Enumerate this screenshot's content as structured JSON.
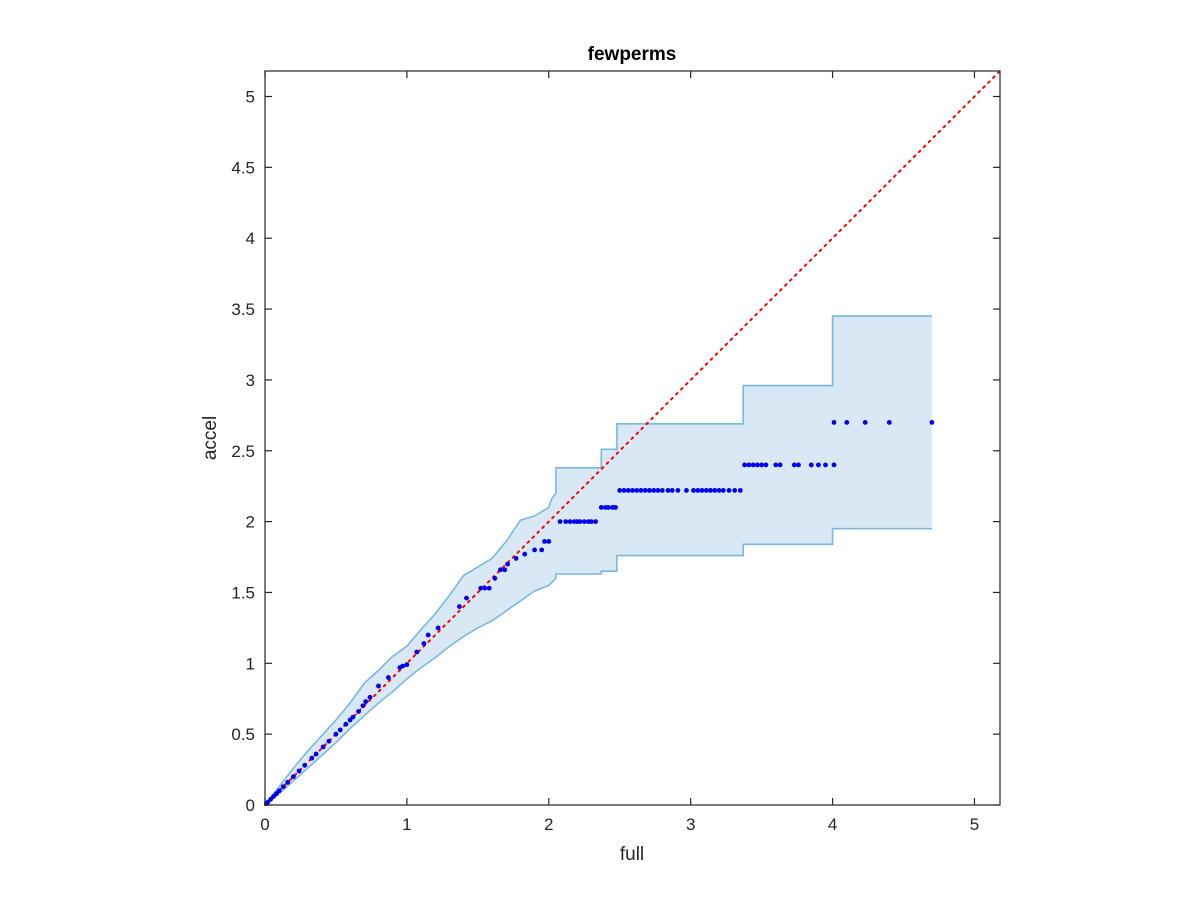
{
  "chart_data": {
    "type": "scatter",
    "title": "fewperms",
    "xlabel": "full",
    "ylabel": "accel",
    "xlim": [
      0,
      5.18
    ],
    "ylim": [
      0,
      5.18
    ],
    "x_ticks": [
      0,
      1,
      2,
      3,
      4,
      5
    ],
    "x_tick_labels": [
      "0",
      "1",
      "2",
      "3",
      "4",
      "5"
    ],
    "y_ticks": [
      0,
      0.5,
      1,
      1.5,
      2,
      2.5,
      3,
      3.5,
      4,
      4.5,
      5
    ],
    "y_tick_labels": [
      "0",
      "0.5",
      "1",
      "1.5",
      "2",
      "2.5",
      "3",
      "3.5",
      "4",
      "4.5",
      "5"
    ],
    "grid": false,
    "legend": "none",
    "colors": {
      "points": "#0000ee",
      "reference_line": "#ff0000",
      "band_fill": "#d8e8f5",
      "band_edge": "#7ab8de",
      "axes": "#262626"
    },
    "reference_line": {
      "style": "dotted",
      "x": [
        0,
        5.18
      ],
      "y": [
        0,
        5.18
      ]
    },
    "band_upper": {
      "x": [
        0,
        0.1,
        0.2,
        0.3,
        0.4,
        0.5,
        0.6,
        0.7,
        0.8,
        0.9,
        1.0,
        1.1,
        1.2,
        1.3,
        1.4,
        1.5,
        1.6,
        1.7,
        1.8,
        1.9,
        2.0,
        2.02,
        2.05,
        2.05,
        2.37,
        2.37,
        2.48,
        2.48,
        3.37,
        3.37,
        4.0,
        4.0,
        4.7
      ],
      "y": [
        0,
        0.13,
        0.26,
        0.38,
        0.49,
        0.6,
        0.72,
        0.86,
        0.95,
        1.05,
        1.12,
        1.24,
        1.35,
        1.48,
        1.62,
        1.68,
        1.74,
        1.86,
        2.01,
        2.04,
        2.1,
        2.16,
        2.2,
        2.38,
        2.38,
        2.51,
        2.51,
        2.69,
        2.69,
        2.96,
        2.96,
        3.45,
        3.45
      ]
    },
    "band_lower": {
      "x": [
        0,
        0.1,
        0.2,
        0.3,
        0.4,
        0.5,
        0.6,
        0.7,
        0.8,
        0.9,
        1.0,
        1.1,
        1.2,
        1.3,
        1.4,
        1.5,
        1.6,
        1.7,
        1.8,
        1.9,
        2.0,
        2.05,
        2.05,
        2.37,
        2.37,
        2.48,
        2.48,
        3.37,
        3.37,
        4.0,
        4.0,
        4.7
      ],
      "y": [
        0,
        0.08,
        0.17,
        0.26,
        0.35,
        0.44,
        0.54,
        0.63,
        0.72,
        0.8,
        0.89,
        0.97,
        1.04,
        1.12,
        1.19,
        1.25,
        1.3,
        1.37,
        1.44,
        1.51,
        1.55,
        1.6,
        1.63,
        1.63,
        1.65,
        1.65,
        1.76,
        1.76,
        1.84,
        1.84,
        1.95,
        1.95
      ]
    },
    "points": [
      {
        "x": 0.01,
        "y": 0.01
      },
      {
        "x": 0.02,
        "y": 0.02
      },
      {
        "x": 0.04,
        "y": 0.04
      },
      {
        "x": 0.06,
        "y": 0.06
      },
      {
        "x": 0.08,
        "y": 0.08
      },
      {
        "x": 0.1,
        "y": 0.1
      },
      {
        "x": 0.13,
        "y": 0.13
      },
      {
        "x": 0.16,
        "y": 0.16
      },
      {
        "x": 0.2,
        "y": 0.2
      },
      {
        "x": 0.24,
        "y": 0.24
      },
      {
        "x": 0.28,
        "y": 0.28
      },
      {
        "x": 0.33,
        "y": 0.33
      },
      {
        "x": 0.36,
        "y": 0.36
      },
      {
        "x": 0.41,
        "y": 0.41
      },
      {
        "x": 0.45,
        "y": 0.45
      },
      {
        "x": 0.5,
        "y": 0.5
      },
      {
        "x": 0.53,
        "y": 0.53
      },
      {
        "x": 0.57,
        "y": 0.57
      },
      {
        "x": 0.6,
        "y": 0.6
      },
      {
        "x": 0.62,
        "y": 0.62
      },
      {
        "x": 0.66,
        "y": 0.66
      },
      {
        "x": 0.69,
        "y": 0.7
      },
      {
        "x": 0.71,
        "y": 0.73
      },
      {
        "x": 0.74,
        "y": 0.76
      },
      {
        "x": 0.8,
        "y": 0.84
      },
      {
        "x": 0.87,
        "y": 0.9
      },
      {
        "x": 0.95,
        "y": 0.97
      },
      {
        "x": 0.97,
        "y": 0.98
      },
      {
        "x": 1.0,
        "y": 0.99
      },
      {
        "x": 1.07,
        "y": 1.08
      },
      {
        "x": 1.12,
        "y": 1.14
      },
      {
        "x": 1.15,
        "y": 1.2
      },
      {
        "x": 1.22,
        "y": 1.25
      },
      {
        "x": 1.37,
        "y": 1.4
      },
      {
        "x": 1.42,
        "y": 1.46
      },
      {
        "x": 1.52,
        "y": 1.53
      },
      {
        "x": 1.55,
        "y": 1.53
      },
      {
        "x": 1.58,
        "y": 1.53
      },
      {
        "x": 1.62,
        "y": 1.6
      },
      {
        "x": 1.66,
        "y": 1.66
      },
      {
        "x": 1.69,
        "y": 1.66
      },
      {
        "x": 1.71,
        "y": 1.7
      },
      {
        "x": 1.77,
        "y": 1.74
      },
      {
        "x": 1.83,
        "y": 1.77
      },
      {
        "x": 1.9,
        "y": 1.8
      },
      {
        "x": 1.95,
        "y": 1.8
      },
      {
        "x": 1.97,
        "y": 1.86
      },
      {
        "x": 2.0,
        "y": 1.86
      },
      {
        "x": 2.08,
        "y": 2.0
      },
      {
        "x": 2.12,
        "y": 2.0
      },
      {
        "x": 2.15,
        "y": 2.0
      },
      {
        "x": 2.18,
        "y": 2.0
      },
      {
        "x": 2.2,
        "y": 2.0
      },
      {
        "x": 2.22,
        "y": 2.0
      },
      {
        "x": 2.25,
        "y": 2.0
      },
      {
        "x": 2.28,
        "y": 2.0
      },
      {
        "x": 2.3,
        "y": 2.0
      },
      {
        "x": 2.33,
        "y": 2.0
      },
      {
        "x": 2.37,
        "y": 2.1
      },
      {
        "x": 2.4,
        "y": 2.1
      },
      {
        "x": 2.42,
        "y": 2.1
      },
      {
        "x": 2.45,
        "y": 2.1
      },
      {
        "x": 2.47,
        "y": 2.1
      },
      {
        "x": 2.5,
        "y": 2.22
      },
      {
        "x": 2.53,
        "y": 2.22
      },
      {
        "x": 2.56,
        "y": 2.22
      },
      {
        "x": 2.59,
        "y": 2.22
      },
      {
        "x": 2.62,
        "y": 2.22
      },
      {
        "x": 2.65,
        "y": 2.22
      },
      {
        "x": 2.68,
        "y": 2.22
      },
      {
        "x": 2.71,
        "y": 2.22
      },
      {
        "x": 2.74,
        "y": 2.22
      },
      {
        "x": 2.77,
        "y": 2.22
      },
      {
        "x": 2.8,
        "y": 2.22
      },
      {
        "x": 2.84,
        "y": 2.22
      },
      {
        "x": 2.87,
        "y": 2.22
      },
      {
        "x": 2.91,
        "y": 2.22
      },
      {
        "x": 2.97,
        "y": 2.22
      },
      {
        "x": 3.02,
        "y": 2.22
      },
      {
        "x": 3.05,
        "y": 2.22
      },
      {
        "x": 3.08,
        "y": 2.22
      },
      {
        "x": 3.11,
        "y": 2.22
      },
      {
        "x": 3.14,
        "y": 2.22
      },
      {
        "x": 3.17,
        "y": 2.22
      },
      {
        "x": 3.2,
        "y": 2.22
      },
      {
        "x": 3.23,
        "y": 2.22
      },
      {
        "x": 3.27,
        "y": 2.22
      },
      {
        "x": 3.31,
        "y": 2.22
      },
      {
        "x": 3.35,
        "y": 2.22
      },
      {
        "x": 3.38,
        "y": 2.4
      },
      {
        "x": 3.41,
        "y": 2.4
      },
      {
        "x": 3.44,
        "y": 2.4
      },
      {
        "x": 3.47,
        "y": 2.4
      },
      {
        "x": 3.5,
        "y": 2.4
      },
      {
        "x": 3.53,
        "y": 2.4
      },
      {
        "x": 3.6,
        "y": 2.4
      },
      {
        "x": 3.63,
        "y": 2.4
      },
      {
        "x": 3.73,
        "y": 2.4
      },
      {
        "x": 3.76,
        "y": 2.4
      },
      {
        "x": 3.85,
        "y": 2.4
      },
      {
        "x": 3.9,
        "y": 2.4
      },
      {
        "x": 3.95,
        "y": 2.4
      },
      {
        "x": 4.01,
        "y": 2.4
      },
      {
        "x": 4.01,
        "y": 2.7
      },
      {
        "x": 4.1,
        "y": 2.7
      },
      {
        "x": 4.23,
        "y": 2.7
      },
      {
        "x": 4.4,
        "y": 2.7
      },
      {
        "x": 4.7,
        "y": 2.7
      }
    ]
  }
}
